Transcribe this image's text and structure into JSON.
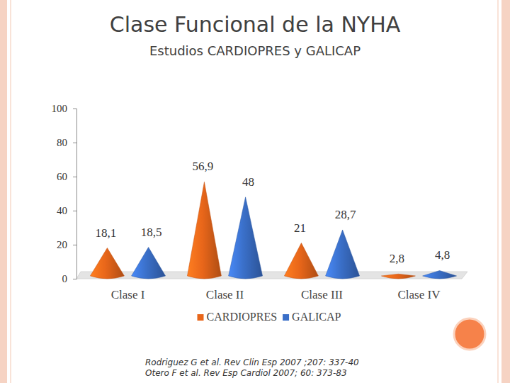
{
  "chart_data": {
    "type": "bar",
    "marker": "cone",
    "title": "Clase Funcional de la NYHA",
    "subtitle": "Estudios CARDIOPRES y GALICAP",
    "categories": [
      "Clase I",
      "Clase II",
      "Clase III",
      "Clase IV"
    ],
    "series": [
      {
        "name": "CARDIOPRES",
        "color": "#e8661a",
        "values": [
          18.1,
          56.9,
          21,
          2.8
        ],
        "value_labels": [
          "18,1",
          "56,9",
          "21",
          "2,8"
        ]
      },
      {
        "name": "GALICAP",
        "color": "#3a6fc8",
        "values": [
          18.5,
          48,
          28.7,
          4.8
        ],
        "value_labels": [
          "18,5",
          "48",
          "28,7",
          "4,8"
        ]
      }
    ],
    "ylim": [
      0,
      100
    ],
    "yticks": [
      0,
      20,
      40,
      60,
      80,
      100
    ],
    "grid": false,
    "data_labels": true,
    "legend": "bottom",
    "annotations": [
      "Rodriguez G et al. Rev Clin Esp  2007 ;207: 337-40",
      "Otero F et al. Rev Esp Cardiol 2007; 60: 373-83"
    ]
  }
}
